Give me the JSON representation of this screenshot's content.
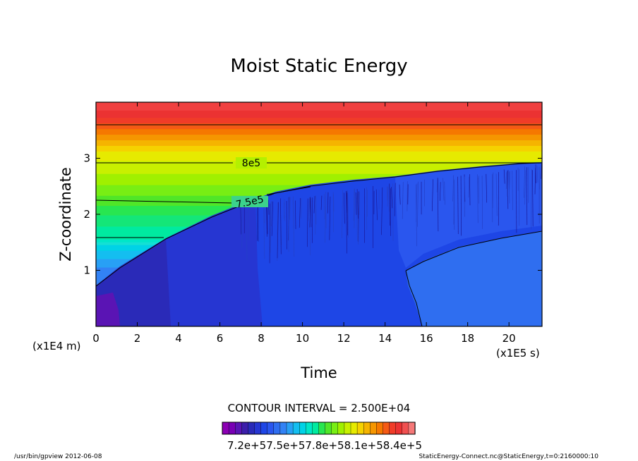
{
  "chart_data": {
    "type": "heatmap",
    "title": "Moist Static Energy",
    "xlabel": "Time",
    "ylabel": "Z-coordinate",
    "x_unit": "(x1E5 s)",
    "y_unit": "(x1E4 m)",
    "xlim": [
      0,
      21.6
    ],
    "ylim": [
      0,
      4.0
    ],
    "xticks": [
      "0",
      "2",
      "4",
      "6",
      "8",
      "10",
      "12",
      "14",
      "16",
      "18",
      "20"
    ],
    "yticks": [
      "1",
      "2",
      "3"
    ],
    "contour_labels": [
      {
        "text": "8e5",
        "x": 7.4,
        "y": 2.92
      },
      {
        "text": "7.5e5",
        "x": 7.2,
        "y": 2.22
      }
    ],
    "contour_interval": "CONTOUR INTERVAL = 2.500E+04",
    "colorbar_label": "7.2e+57.5e+57.8e+58.1e+58.4e+5",
    "colorbar_min": 710000,
    "colorbar_max": 860000,
    "colorbar_step": 5000
  },
  "footer": {
    "left": "/usr/bin/gpview   2012-06-08",
    "right": "StaticEnergy-Connect.nc@StaticEnergy,t=0:2160000:10"
  }
}
